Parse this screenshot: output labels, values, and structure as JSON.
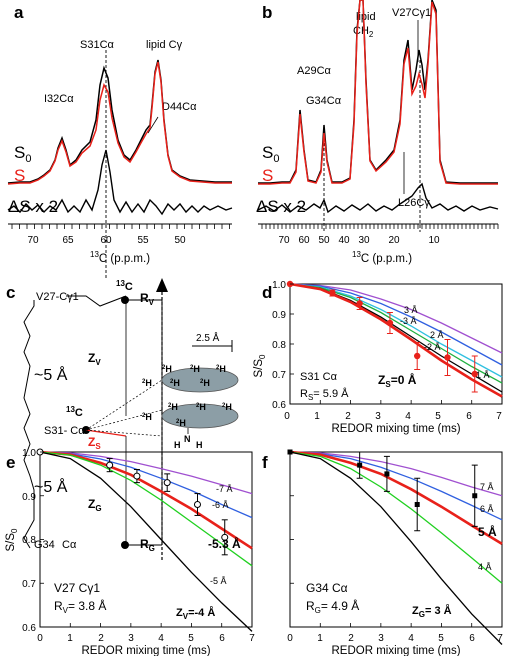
{
  "colors": {
    "s0": "#000000",
    "s": "#e8211a"
  },
  "a": {
    "letter": "a",
    "peaks": [
      "I32Cα",
      "S31Cα",
      "lipid Cγ",
      "D44Cα"
    ],
    "s0_label": "S",
    "s0_sub": "0",
    "s_label": "S",
    "ds_label": "ΔS x 2",
    "xticks": [
      "70",
      "65",
      "60",
      "55",
      "50"
    ],
    "xlabel_sup": "13",
    "xlabel": "C (p.p.m.)"
  },
  "b": {
    "letter": "b",
    "peaks": [
      "lipid",
      "CH",
      "2",
      "V27Cγ1",
      "A29Cα",
      "G34Cα",
      "L26Cγ"
    ],
    "s0_label": "S",
    "s0_sub": "0",
    "s_label": "S",
    "ds_label": "ΔS x 2",
    "xticks": [
      "70",
      "60",
      "50",
      "40",
      "30",
      "20",
      "10"
    ],
    "xlabel_sup": "13",
    "xlabel": "C (p.p.m.)"
  },
  "c": {
    "letter": "c",
    "labels": {
      "v27": "V27-Cγ1",
      "c13_top": "13",
      "c_top": "C",
      "rv": "R",
      "rv_sub": "V",
      "dist1": "~5 Å",
      "zv": "Z",
      "zv_sub": "V",
      "c13_mid": "13",
      "c_mid": "C",
      "s31": "S31- Cα",
      "zs": "Z",
      "zs_sub": "S",
      "dist2": "~5 Å",
      "zg": "Z",
      "zg_sub": "G",
      "g34": "G34",
      "ca": "Cα",
      "rg": "R",
      "rg_sub": "G",
      "scale": "2.5 Å",
      "h": "H",
      "h2": "2",
      "n": "N"
    }
  },
  "d": {
    "letter": "d",
    "ylabel": "S/S",
    "ylabel_sub": "0",
    "xlabel": "REDOR mixing time (ms)",
    "residue": "S31 Cα",
    "r_label": "R",
    "r_sub": "S",
    "r_value": "= 5.9 Å",
    "z_label": "Z",
    "z_sub": "S",
    "z_value": "=0 Å",
    "curve_labels": [
      "3 Å",
      "-3 Å",
      "2 Å",
      "-2 Å",
      "1 Å"
    ],
    "xticks": [
      "0",
      "1",
      "2",
      "3",
      "4",
      "5",
      "6",
      "7"
    ],
    "yticks": [
      "0.6",
      "0.7",
      "0.8",
      "0.9",
      "1.0"
    ]
  },
  "e": {
    "letter": "e",
    "ylabel": "S/S",
    "ylabel_sub": "0",
    "xlabel": "REDOR mixing time (ms)",
    "residue": "V27 Cγ1",
    "r_label": "R",
    "r_sub": "V",
    "r_value": "= 3.8 Å",
    "z_label": "Z",
    "z_sub": "V",
    "z_value": "=-4 Å",
    "curve_labels": [
      "-7 Å",
      "-6 Å",
      "-5.3 Å",
      "-5 Å"
    ],
    "xticks": [
      "0",
      "1",
      "2",
      "3",
      "4",
      "5",
      "6",
      "7"
    ],
    "yticks": [
      "0.6",
      "0.7",
      "0.8",
      "0.9",
      "1.0"
    ]
  },
  "f": {
    "letter": "f",
    "xlabel": "REDOR mixing time (ms)",
    "residue": "G34 Cα",
    "r_label": "R",
    "r_sub": "G",
    "r_value": "= 4.9 Å",
    "z_label": "Z",
    "z_sub": "G",
    "z_value": "= 3 Å",
    "curve_labels": [
      "7 Å",
      "6 Å",
      "5 Å",
      "4 Å"
    ],
    "xticks": [
      "0",
      "1",
      "2",
      "3",
      "4",
      "5",
      "6",
      "7"
    ]
  },
  "chart_data": [
    {
      "type": "line",
      "panel": "d",
      "xlim": [
        0,
        7
      ],
      "ylim": [
        0.6,
        1.0
      ],
      "series": [
        {
          "name": "3 Å",
          "color": "#a050d0",
          "x": [
            0,
            1,
            2,
            3,
            4,
            5,
            6,
            7
          ],
          "y": [
            1.0,
            0.995,
            0.98,
            0.95,
            0.915,
            0.87,
            0.82,
            0.77
          ]
        },
        {
          "name": "-3 Å",
          "color": "#3060e0",
          "x": [
            0,
            1,
            2,
            3,
            4,
            5,
            6,
            7
          ],
          "y": [
            1.0,
            0.993,
            0.97,
            0.935,
            0.89,
            0.84,
            0.785,
            0.73
          ]
        },
        {
          "name": "2 Å",
          "color": "#30c0e0",
          "x": [
            0,
            1,
            2,
            3,
            4,
            5,
            6,
            7
          ],
          "y": [
            1.0,
            0.99,
            0.96,
            0.915,
            0.86,
            0.8,
            0.745,
            0.69
          ]
        },
        {
          "name": "-2 Å",
          "color": "#20b040",
          "x": [
            0,
            1,
            2,
            3,
            4,
            5,
            6,
            7
          ],
          "y": [
            1.0,
            0.988,
            0.955,
            0.905,
            0.845,
            0.785,
            0.725,
            0.67
          ]
        },
        {
          "name": "1 Å",
          "color": "#000000",
          "x": [
            0,
            1,
            2,
            3,
            4,
            5,
            6,
            7
          ],
          "y": [
            1.0,
            0.985,
            0.945,
            0.89,
            0.825,
            0.76,
            0.7,
            0.64
          ]
        },
        {
          "name": "0 Å",
          "color": "#e8211a",
          "x": [
            0,
            1,
            2,
            3,
            4,
            5,
            6,
            7
          ],
          "y": [
            1.0,
            0.983,
            0.94,
            0.882,
            0.815,
            0.745,
            0.682,
            0.625
          ]
        }
      ],
      "points": {
        "x": [
          0,
          1.4,
          2.3,
          3.3,
          4.2,
          5.2,
          6.1
        ],
        "y": [
          1.0,
          0.97,
          0.935,
          0.87,
          0.76,
          0.755,
          0.7
        ],
        "err": [
          0,
          0.01,
          0.02,
          0.035,
          0.045,
          0.06,
          0.06
        ]
      }
    },
    {
      "type": "line",
      "panel": "e",
      "xlim": [
        0,
        7
      ],
      "ylim": [
        0.6,
        1.0
      ],
      "series": [
        {
          "name": "-7 Å",
          "color": "#a050d0",
          "x": [
            0,
            1,
            2,
            3,
            4,
            5,
            6,
            7
          ],
          "y": [
            1.0,
            0.998,
            0.99,
            0.978,
            0.962,
            0.945,
            0.925,
            0.905
          ]
        },
        {
          "name": "-6 Å",
          "color": "#3060e0",
          "x": [
            0,
            1,
            2,
            3,
            4,
            5,
            6,
            7
          ],
          "y": [
            1.0,
            0.996,
            0.984,
            0.965,
            0.94,
            0.912,
            0.88,
            0.85
          ]
        },
        {
          "name": "-5.3 Å",
          "color": "#e8211a",
          "x": [
            0,
            1,
            2,
            3,
            4,
            5,
            6,
            7
          ],
          "y": [
            1.0,
            0.994,
            0.975,
            0.948,
            0.91,
            0.87,
            0.825,
            0.78
          ]
        },
        {
          "name": "-5 Å",
          "color": "#20d020",
          "x": [
            0,
            1,
            2,
            3,
            4,
            5,
            6,
            7
          ],
          "y": [
            1.0,
            0.993,
            0.97,
            0.935,
            0.89,
            0.84,
            0.79,
            0.74
          ]
        },
        {
          "name": "-4 Å",
          "color": "#000000",
          "x": [
            0,
            1,
            2,
            3,
            4,
            5,
            6,
            7
          ],
          "y": [
            1.0,
            0.985,
            0.94,
            0.875,
            0.8,
            0.725,
            0.655,
            0.59
          ]
        }
      ],
      "points": {
        "x": [
          0,
          2.3,
          3.2,
          4.2,
          5.2,
          6.1
        ],
        "y": [
          1.0,
          0.97,
          0.945,
          0.93,
          0.88,
          0.805
        ],
        "err": [
          0,
          0.015,
          0.015,
          0.02,
          0.025,
          0.04
        ]
      }
    },
    {
      "type": "line",
      "panel": "f",
      "xlim": [
        0,
        7
      ],
      "ylim": [
        0.6,
        1.0
      ],
      "series": [
        {
          "name": "7 Å",
          "color": "#a050d0",
          "x": [
            0,
            1,
            2,
            3,
            4,
            5,
            6,
            7
          ],
          "y": [
            1.0,
            0.998,
            0.99,
            0.978,
            0.962,
            0.942,
            0.92,
            0.9
          ]
        },
        {
          "name": "6 Å",
          "color": "#3060e0",
          "x": [
            0,
            1,
            2,
            3,
            4,
            5,
            6,
            7
          ],
          "y": [
            1.0,
            0.996,
            0.985,
            0.965,
            0.94,
            0.91,
            0.878,
            0.845
          ]
        },
        {
          "name": "5 Å",
          "color": "#e8211a",
          "x": [
            0,
            1,
            2,
            3,
            4,
            5,
            6,
            7
          ],
          "y": [
            1.0,
            0.994,
            0.975,
            0.95,
            0.915,
            0.875,
            0.832,
            0.79
          ]
        },
        {
          "name": "4 Å",
          "color": "#20d020",
          "x": [
            0,
            1,
            2,
            3,
            4,
            5,
            6,
            7
          ],
          "y": [
            1.0,
            0.99,
            0.962,
            0.92,
            0.87,
            0.815,
            0.758,
            0.7
          ]
        },
        {
          "name": "3 Å",
          "color": "#000000",
          "x": [
            0,
            1,
            2,
            3,
            4,
            5,
            6,
            7
          ],
          "y": [
            1.0,
            0.985,
            0.94,
            0.875,
            0.795,
            0.71,
            0.63,
            0.56
          ]
        }
      ],
      "points": {
        "x": [
          0,
          2.3,
          3.2,
          4.2,
          6.1
        ],
        "y": [
          1.0,
          0.97,
          0.95,
          0.88,
          0.9
        ],
        "err": [
          0,
          0.03,
          0.04,
          0.06,
          0.07
        ]
      }
    }
  ]
}
